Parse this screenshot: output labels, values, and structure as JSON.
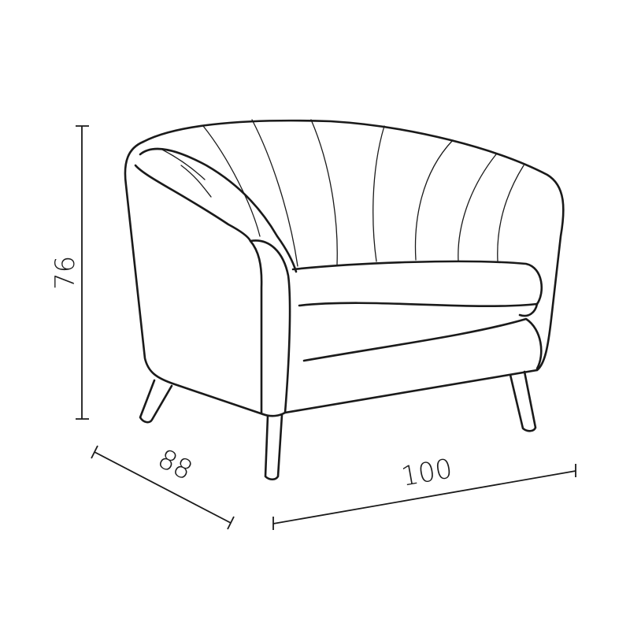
{
  "dimensions": {
    "height": "76",
    "depth": "88",
    "width": "100"
  },
  "colors": {
    "line": "#1a1a1a",
    "background": "#ffffff"
  }
}
